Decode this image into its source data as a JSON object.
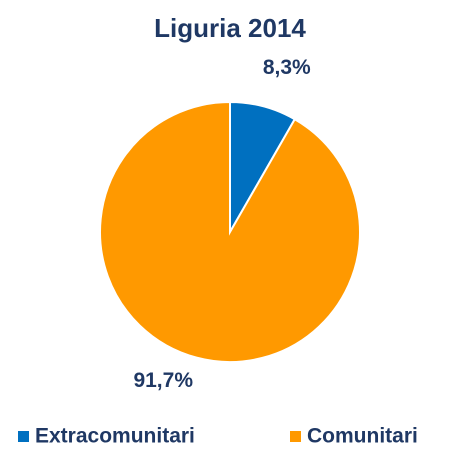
{
  "chart_data": {
    "type": "pie",
    "title": "Liguria 2014",
    "categories": [
      "Extracomunitari",
      "Comunitari"
    ],
    "values": [
      8.3,
      91.7
    ],
    "value_labels": [
      "8,3%",
      "91,7%"
    ],
    "colors": [
      "#0070c0",
      "#ff9900"
    ],
    "legend": "bottom"
  }
}
